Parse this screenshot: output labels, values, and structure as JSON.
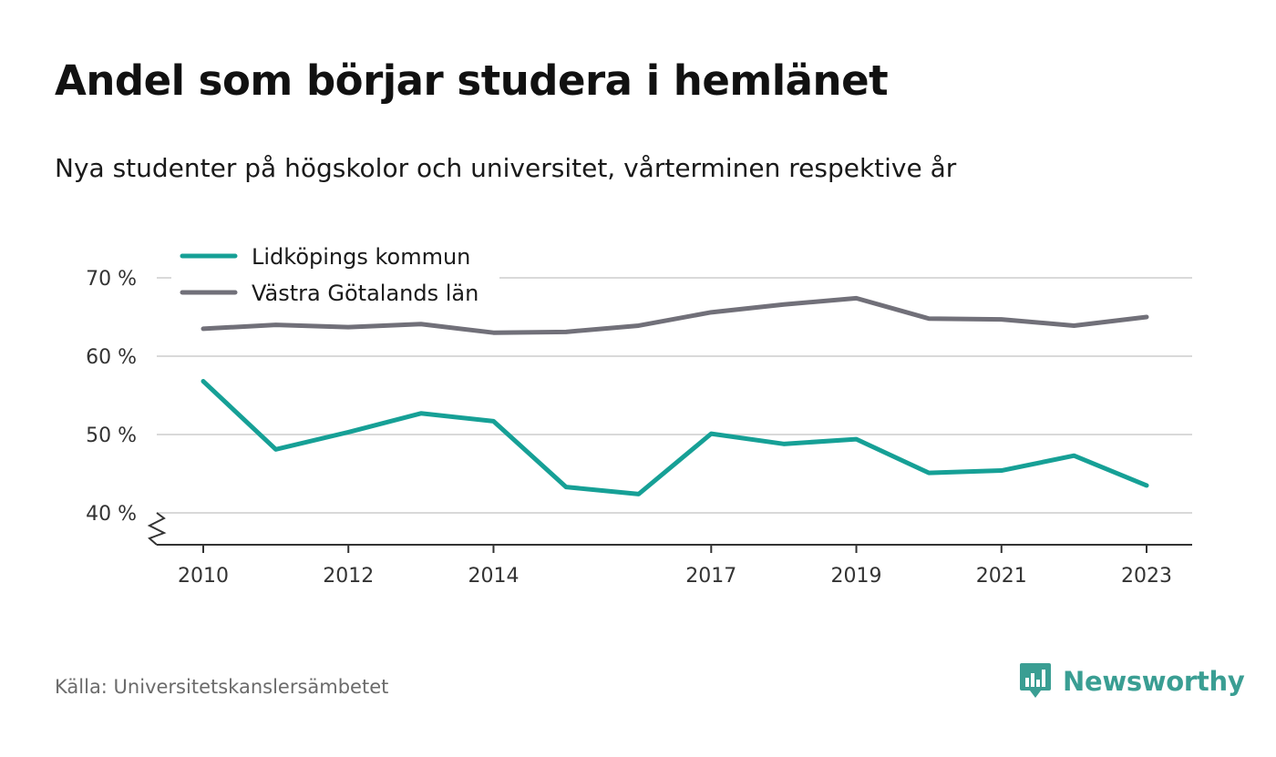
{
  "header": {
    "title": "Andel som börjar studera i hemlänet",
    "subtitle": "Nya studenter på högskolor och universitet, vårterminen respektive år"
  },
  "footer": {
    "source": "Källa: Universitetskanslersämbetet",
    "brand": "Newsworthy",
    "brand_icon": "bar-chart-speech-bubble-icon"
  },
  "colors": {
    "series_1": "#16a096",
    "series_2": "#717079",
    "grid": "#d9d9d9",
    "axis": "#333333",
    "brand": "#3a9e93"
  },
  "chart_data": {
    "type": "line",
    "title": "",
    "xlabel": "",
    "ylabel": "",
    "x": [
      2010,
      2011,
      2012,
      2013,
      2014,
      2015,
      2016,
      2017,
      2018,
      2019,
      2020,
      2021,
      2022,
      2023
    ],
    "x_ticks": [
      "2010",
      "2012",
      "2014",
      "2017",
      "2019",
      "2021",
      "2023"
    ],
    "y_ticks": [
      "40 %",
      "50 %",
      "60 %",
      "70 %"
    ],
    "ylim": [
      36,
      70
    ],
    "y_axis_break": true,
    "grid": true,
    "legend_position": "top-left",
    "series": [
      {
        "name": "Lidköpings kommun",
        "values": [
          56.8,
          48.1,
          50.3,
          52.7,
          51.7,
          43.3,
          42.4,
          50.1,
          48.8,
          49.4,
          45.1,
          45.4,
          47.3,
          43.5
        ]
      },
      {
        "name": "Västra Götalands län",
        "values": [
          63.5,
          64.0,
          63.7,
          64.1,
          63.0,
          63.1,
          63.9,
          65.6,
          66.6,
          67.4,
          64.8,
          64.7,
          63.9,
          65.0
        ]
      }
    ]
  }
}
